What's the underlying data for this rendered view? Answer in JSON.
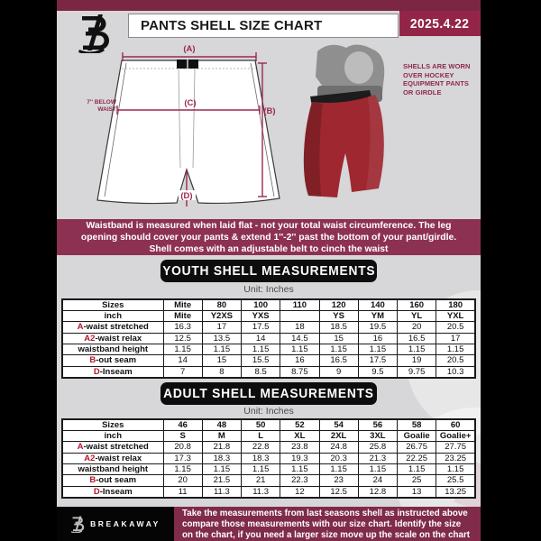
{
  "palette": {
    "page_bg": "#d7d6d8",
    "side_borders": "#000000",
    "top_bar_maroon": "#7b2642",
    "date_box_maroon": "#932648",
    "band_maroon": "#8d3153",
    "footer_maroon": "#7f2b49",
    "banner_black": "#0d0d0d",
    "table_prefix_red": "#b3192e",
    "measure_line_maroon": "#9c2850",
    "shell_red": "#9e2730"
  },
  "header": {
    "title": "PANTS SHELL SIZE CHART",
    "date": "2025.4.22",
    "logo_icon": "breakaway-b-logo"
  },
  "diagram": {
    "labels": {
      "a": "(A)",
      "b": "(B)",
      "c": "(C)",
      "d": "(D)"
    },
    "waist_note_line1": "7'' BELOW",
    "waist_note_line2": "WAIST",
    "photo_caption": [
      "SHELLS ARE WORN",
      "OVER HOCKEY",
      "EQUIPMENT PANTS",
      "OR GIRDLE"
    ]
  },
  "notice_band": {
    "lines": [
      "Waistband is measured when laid flat - not your total waist circumference. The leg",
      "opening should cover your pants & extend 1''-2'' past the bottom of your pant/girdle.",
      "Shell comes with an adjustable belt to cinch the waist"
    ]
  },
  "youth_section": {
    "banner": "YOUTH SHELL MEASUREMENTS",
    "unit": "Unit: Inches"
  },
  "adult_section": {
    "banner": "ADULT SHELL MEASUREMENTS",
    "unit": "Unit: Inches"
  },
  "youth_table": {
    "rows": [
      {
        "header": true,
        "prefix": "",
        "label": "Sizes",
        "values": [
          "Mite",
          "80",
          "100",
          "110",
          "120",
          "140",
          "160",
          "180"
        ]
      },
      {
        "header": true,
        "prefix": "",
        "label": "inch",
        "values": [
          "Mite",
          "Y2XS",
          "YXS",
          "",
          "YS",
          "YM",
          "YL",
          "YXL"
        ]
      },
      {
        "header": false,
        "prefix": "A",
        "label": "-waist stretched",
        "values": [
          "16.3",
          "17",
          "17.5",
          "18",
          "18.5",
          "19.5",
          "20",
          "20.5"
        ]
      },
      {
        "header": false,
        "prefix": "A2",
        "label": "-waist relax",
        "values": [
          "12.5",
          "13.5",
          "14",
          "14.5",
          "15",
          "16",
          "16.5",
          "17"
        ]
      },
      {
        "header": false,
        "prefix": "",
        "label": "waistband height",
        "values": [
          "1.15",
          "1.15",
          "1.15",
          "1.15",
          "1.15",
          "1.15",
          "1.15",
          "1.15"
        ]
      },
      {
        "header": false,
        "prefix": "B",
        "label": "-out seam",
        "values": [
          "14",
          "15",
          "15.5",
          "16",
          "16.5",
          "17.5",
          "19",
          "20.5"
        ]
      },
      {
        "header": false,
        "prefix": "D",
        "label": "-Inseam",
        "values": [
          "7",
          "8",
          "8.5",
          "8.75",
          "9",
          "9.5",
          "9.75",
          "10.3"
        ]
      }
    ]
  },
  "adult_table": {
    "rows": [
      {
        "header": true,
        "prefix": "",
        "label": "Sizes",
        "values": [
          "46",
          "48",
          "50",
          "52",
          "54",
          "56",
          "58",
          "60"
        ]
      },
      {
        "header": true,
        "prefix": "",
        "label": "inch",
        "values": [
          "S",
          "M",
          "L",
          "XL",
          "2XL",
          "3XL",
          "Goalie",
          "Goalie+"
        ]
      },
      {
        "header": false,
        "prefix": "A",
        "label": "-waist stretched",
        "values": [
          "20.8",
          "21.8",
          "22.8",
          "23.8",
          "24.8",
          "25.8",
          "26.75",
          "27.75"
        ]
      },
      {
        "header": false,
        "prefix": "A2",
        "label": "-waist relax",
        "values": [
          "17.3",
          "18.3",
          "18.3",
          "19.3",
          "20.3",
          "21.3",
          "22.25",
          "23.25"
        ]
      },
      {
        "header": false,
        "prefix": "",
        "label": "waistband height",
        "values": [
          "1.15",
          "1.15",
          "1.15",
          "1.15",
          "1.15",
          "1.15",
          "1.15",
          "1.15"
        ]
      },
      {
        "header": false,
        "prefix": "B",
        "label": "-out seam",
        "values": [
          "20",
          "21.5",
          "21",
          "22.3",
          "23",
          "24",
          "25",
          "25.5"
        ]
      },
      {
        "header": false,
        "prefix": "D",
        "label": "-Inseam",
        "values": [
          "11",
          "11.3",
          "11.3",
          "12",
          "12.5",
          "12.8",
          "13",
          "13.25"
        ]
      }
    ]
  },
  "footer": {
    "brand": "BREAKAWAY",
    "brand_icon": "breakaway-b-logo",
    "lines": [
      "Take the measurements from last seasons shell as instructed above",
      "compare those measurements with our size chart. Identify the size",
      "on the chart, if you need a larger size move up the scale on the chart"
    ]
  }
}
